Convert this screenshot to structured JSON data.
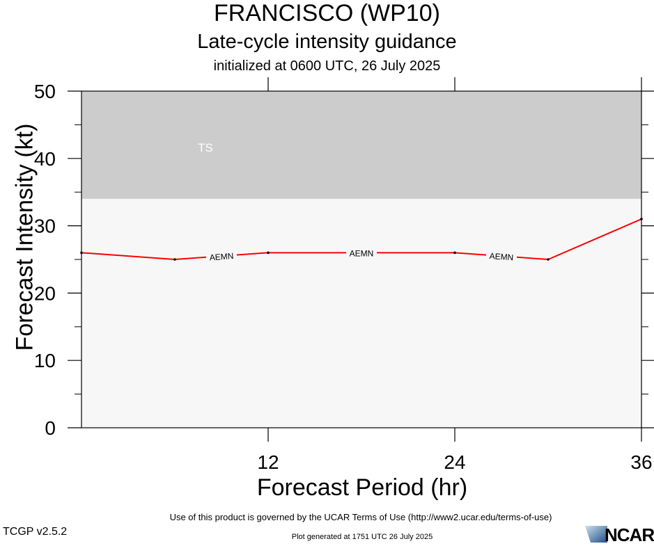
{
  "header": {
    "title": "FRANCISCO (WP10)",
    "subtitle": "Late-cycle intensity guidance",
    "initialized": "initialized at 0600 UTC, 26 July 2025"
  },
  "chart_data": {
    "type": "line",
    "xlabel": "Forecast Period (hr)",
    "ylabel": "Forecast Intensity (kt)",
    "xlim": [
      0,
      36
    ],
    "ylim": [
      0,
      50
    ],
    "x_ticks": [
      12,
      24,
      36
    ],
    "y_ticks": [
      0,
      10,
      20,
      30,
      40,
      50
    ],
    "bands": [
      {
        "label": "TS",
        "from": 34,
        "to": 50,
        "color": "#cccccc"
      },
      {
        "label": "",
        "from": 0,
        "to": 34,
        "color": "#f7f7f7"
      }
    ],
    "series": [
      {
        "name": "AEMN",
        "color": "#ff0000",
        "x": [
          0,
          6,
          12,
          18,
          24,
          30,
          36
        ],
        "y": [
          26,
          25,
          26,
          26,
          26,
          25,
          31
        ],
        "label_positions": [
          9,
          18,
          27
        ]
      }
    ]
  },
  "footer": {
    "terms": "Use of this product is governed by the UCAR Terms of Use (http://www2.ucar.edu/terms-of-use)",
    "version": "TCGP v2.5.2",
    "generated": "Plot generated at 1751 UTC   26 July 2025",
    "logo_text": "NCAR"
  }
}
